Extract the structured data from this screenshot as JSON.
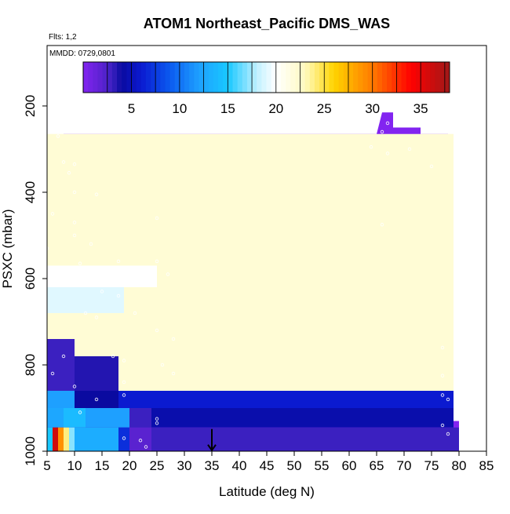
{
  "chart_data": {
    "type": "heatmap",
    "title": "ATOM1 Northeast_Pacific DMS_WAS",
    "subtitle_flights": "Flts: 1,2",
    "subtitle_dates": "MMDD: 0729,0801",
    "xlabel": "Latitude (deg N)",
    "ylabel": "PSXC (mbar)",
    "xlim": [
      5,
      85
    ],
    "ylim": [
      1000,
      60
    ],
    "y_reversed": true,
    "x_ticks": [
      "5",
      "10",
      "15",
      "20",
      "25",
      "30",
      "35",
      "40",
      "45",
      "50",
      "55",
      "60",
      "65",
      "70",
      "75",
      "80",
      "85"
    ],
    "y_ticks": [
      "200",
      "400",
      "600",
      "800",
      "1000"
    ],
    "colorbar": {
      "range": [
        0,
        38
      ],
      "ticks": [
        "5",
        "10",
        "15",
        "20",
        "25",
        "30",
        "35"
      ],
      "placement": "top, inside plot"
    },
    "marker": {
      "shape": "arrow",
      "x": 35,
      "y": 985
    },
    "colors": {
      "background_fill": "#8224f0",
      "violet_blue": "#5a22d0",
      "indigo": "#3b20c0",
      "dark_indigo": "#2a1cb0",
      "navy": "#0a0aa0",
      "blue": "#0b2be0",
      "sky": "#1ea0ff",
      "cyan": "#19c8ff",
      "light_cyan": "#c0f0ff",
      "yellow": "#ffd400",
      "orange": "#ff7a00",
      "red": "#e00000"
    },
    "region_outline_lat_top": [
      [
        5,
        400
      ],
      [
        6,
        320
      ],
      [
        7,
        300
      ],
      [
        8,
        265
      ],
      [
        23,
        265
      ],
      [
        65,
        265
      ],
      [
        66,
        215
      ],
      [
        68,
        215
      ],
      [
        68,
        250
      ],
      [
        73,
        250
      ],
      [
        73,
        265
      ],
      [
        78,
        265
      ],
      [
        78,
        620
      ],
      [
        79,
        620
      ],
      [
        79,
        930
      ],
      [
        80,
        930
      ],
      [
        80,
        990
      ],
      [
        79,
        990
      ],
      [
        79,
        1000
      ],
      [
        5,
        1000
      ]
    ],
    "cells": [
      {
        "x0": 5,
        "x1": 79,
        "y0": 265,
        "y1": 860,
        "c": 22
      },
      {
        "x0": 5,
        "x1": 79,
        "y0": 860,
        "y1": 900,
        "c": 6
      },
      {
        "x0": 5,
        "x1": 79,
        "y0": 900,
        "y1": 945,
        "c": 4.5
      },
      {
        "x0": 5,
        "x1": 80,
        "y0": 945,
        "y1": 1000,
        "c": 3
      },
      {
        "x0": 5,
        "x1": 25,
        "y0": 570,
        "y1": 620,
        "c": 20
      },
      {
        "x0": 5,
        "x1": 19,
        "y0": 620,
        "y1": 680,
        "c": 19
      },
      {
        "x0": 5,
        "x1": 10,
        "y0": 740,
        "y1": 860,
        "c": 3
      },
      {
        "x0": 10,
        "x1": 18,
        "y0": 780,
        "y1": 860,
        "c": 3.5
      },
      {
        "x0": 5,
        "x1": 10,
        "y0": 860,
        "y1": 900,
        "c": 12
      },
      {
        "x0": 10,
        "x1": 18,
        "y0": 860,
        "y1": 900,
        "c": 4
      },
      {
        "x0": 5,
        "x1": 8,
        "y0": 900,
        "y1": 945,
        "c": 12.5
      },
      {
        "x0": 8,
        "x1": 12,
        "y0": 900,
        "y1": 945,
        "c": 14
      },
      {
        "x0": 12,
        "x1": 20,
        "y0": 900,
        "y1": 945,
        "c": 12
      },
      {
        "x0": 20,
        "x1": 24,
        "y0": 900,
        "y1": 945,
        "c": 3
      },
      {
        "x0": 5,
        "x1": 6,
        "y0": 945,
        "y1": 1000,
        "c": 15
      },
      {
        "x0": 6,
        "x1": 7,
        "y0": 945,
        "y1": 1000,
        "c": 36
      },
      {
        "x0": 7,
        "x1": 8,
        "y0": 945,
        "y1": 1000,
        "c": 29
      },
      {
        "x0": 8,
        "x1": 9,
        "y0": 945,
        "y1": 1000,
        "c": 24
      },
      {
        "x0": 9,
        "x1": 10,
        "y0": 945,
        "y1": 1000,
        "c": 17
      },
      {
        "x0": 10,
        "x1": 18,
        "y0": 945,
        "y1": 1000,
        "c": 13
      },
      {
        "x0": 18,
        "x1": 20,
        "y0": 945,
        "y1": 1000,
        "c": 7
      },
      {
        "x0": 20,
        "x1": 24,
        "y0": 945,
        "y1": 1000,
        "c": 2
      }
    ],
    "sample_points": [
      [
        7,
        270
      ],
      [
        9,
        355
      ],
      [
        10,
        335
      ],
      [
        8,
        330
      ],
      [
        10,
        400
      ],
      [
        14,
        405
      ],
      [
        6,
        450
      ],
      [
        10,
        470
      ],
      [
        10,
        500
      ],
      [
        11,
        565
      ],
      [
        5,
        530
      ],
      [
        13,
        520
      ],
      [
        18,
        560
      ],
      [
        25,
        460
      ],
      [
        25,
        560
      ],
      [
        27,
        590
      ],
      [
        7,
        610
      ],
      [
        11,
        600
      ],
      [
        12,
        610
      ],
      [
        15,
        630
      ],
      [
        18,
        640
      ],
      [
        12,
        680
      ],
      [
        14,
        690
      ],
      [
        21,
        680
      ],
      [
        25,
        720
      ],
      [
        28,
        740
      ],
      [
        8,
        780
      ],
      [
        17,
        780
      ],
      [
        19,
        790
      ],
      [
        26,
        800
      ],
      [
        28,
        820
      ],
      [
        6,
        820
      ],
      [
        10,
        850
      ],
      [
        19,
        840
      ],
      [
        19,
        870
      ],
      [
        14,
        880
      ],
      [
        11,
        910
      ],
      [
        25,
        925
      ],
      [
        25,
        935
      ],
      [
        19,
        970
      ],
      [
        22,
        975
      ],
      [
        23,
        990
      ],
      [
        64,
        295
      ],
      [
        67,
        310
      ],
      [
        66,
        260
      ],
      [
        67,
        240
      ],
      [
        71,
        300
      ],
      [
        75,
        340
      ],
      [
        66,
        475
      ],
      [
        77,
        760
      ],
      [
        77,
        825
      ],
      [
        77,
        870
      ],
      [
        78,
        880
      ],
      [
        77,
        940
      ],
      [
        78,
        960
      ]
    ]
  }
}
